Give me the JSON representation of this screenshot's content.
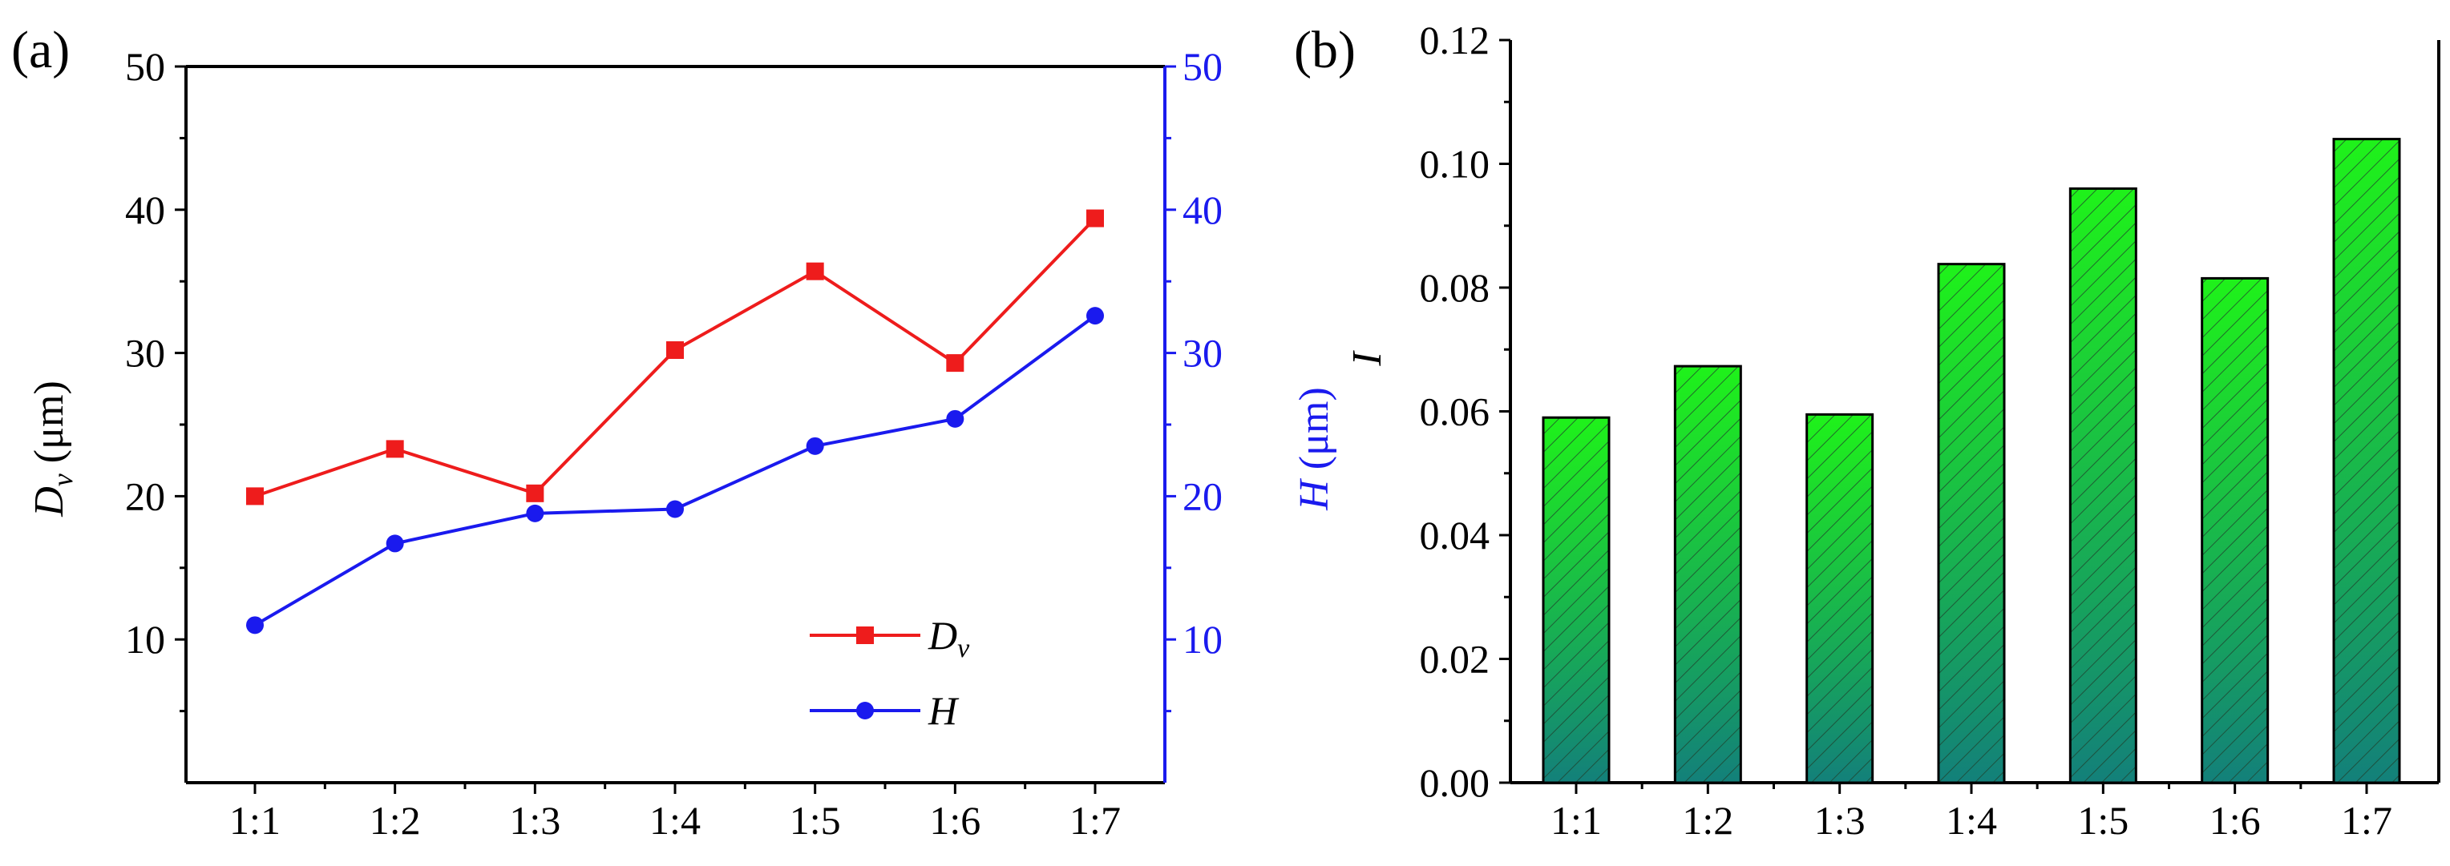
{
  "colors": {
    "dv": "#ee1c1c",
    "h": "#1a1aee",
    "axis": "#000000",
    "right_axis": "#1a1aee",
    "bar_top": "#1ff21a",
    "bar_bottom": "#13807a",
    "hatch": "#1f3f2c"
  },
  "chart_data": [
    {
      "panel_label": "(a)",
      "type": "line",
      "categories": [
        "1:1",
        "1:2",
        "1:3",
        "1:4",
        "1:5",
        "1:6",
        "1:7"
      ],
      "ylabel_left": {
        "main": "D",
        "sub": "v",
        "unit": " (μm)"
      },
      "ylabel_right": {
        "main": "H",
        "unit": " (μm)"
      },
      "ylim_left": [
        0,
        50
      ],
      "ylim_right": [
        0,
        50
      ],
      "yticks_left": [
        "10",
        "20",
        "30",
        "40",
        "50"
      ],
      "yticks_right": [
        "10",
        "20",
        "30",
        "40",
        "50"
      ],
      "legend_position": "bottom-right",
      "series": [
        {
          "name": "D",
          "name_sub": "v",
          "axis": "left",
          "marker": "square",
          "values": [
            20.0,
            23.3,
            20.2,
            30.2,
            35.7,
            29.3,
            39.4
          ]
        },
        {
          "name": "H",
          "axis": "right",
          "marker": "circle",
          "values": [
            11.0,
            16.7,
            18.8,
            19.1,
            23.5,
            25.4,
            32.6
          ]
        }
      ]
    },
    {
      "panel_label": "(b)",
      "type": "bar",
      "categories": [
        "1:1",
        "1:2",
        "1:3",
        "1:4",
        "1:5",
        "1:6",
        "1:7"
      ],
      "ylabel": "I",
      "ylim": [
        0,
        0.12
      ],
      "yticks": [
        "0.00",
        "0.02",
        "0.04",
        "0.06",
        "0.08",
        "0.10",
        "0.12"
      ],
      "values": [
        0.059,
        0.0673,
        0.0595,
        0.0838,
        0.096,
        0.0815,
        0.104
      ]
    }
  ]
}
